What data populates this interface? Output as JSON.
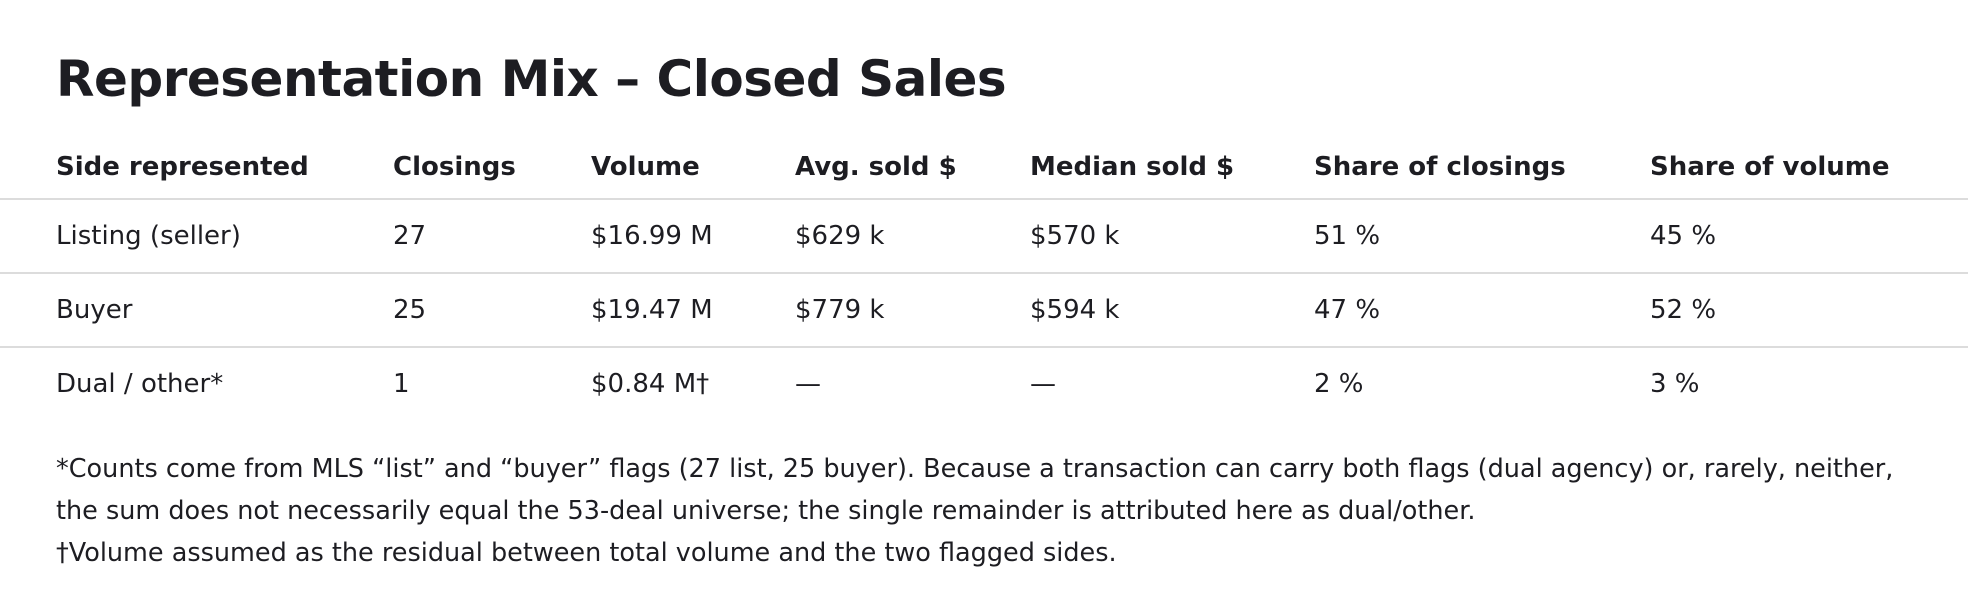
{
  "page": {
    "title": "Representation Mix – Closed Sales"
  },
  "table": {
    "headers": [
      "Side represented",
      "Closings",
      "Volume",
      "Avg. sold $",
      "Median sold $",
      "Share of closings",
      "Share of volume"
    ],
    "rows": [
      [
        "Listing (seller)",
        "27",
        "$16.99 M",
        "$629 k",
        "$570 k",
        "51 %",
        "45 %"
      ],
      [
        "Buyer",
        "25",
        "$19.47 M",
        "$779 k",
        "$594 k",
        "47 %",
        "52 %"
      ],
      [
        "Dual / other*",
        "1",
        "$0.84 M†",
        "—",
        "—",
        "2 %",
        "3 %"
      ]
    ]
  },
  "notes": {
    "asterisk": "*Counts come from MLS “list” and “buyer” flags (27 list, 25 buyer). Because a transaction can carry both flags (dual agency) or, rarely, neither, the sum does not necessarily equal the 53-deal universe; the single remainder is attributed here as dual/other.",
    "dagger": "†Volume assumed as the residual between total volume and the two flagged sides."
  }
}
